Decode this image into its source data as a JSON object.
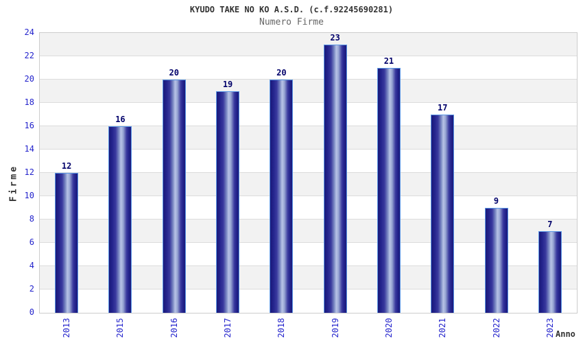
{
  "chart_data": {
    "type": "bar",
    "title": "KYUDO TAKE NO KO A.S.D. (c.f.92245690281)",
    "subtitle": "Numero Firme",
    "categories": [
      "2013",
      "2015",
      "2016",
      "2017",
      "2018",
      "2019",
      "2020",
      "2021",
      "2022",
      "2023"
    ],
    "values": [
      12,
      16,
      20,
      19,
      20,
      23,
      21,
      17,
      9,
      7
    ],
    "xlabel": "Anno",
    "ylabel": "Firme",
    "ylim": [
      0,
      24
    ],
    "ytick_step": 2,
    "grid": "horizontal",
    "bands": "alternating-2-unit",
    "legend": "none",
    "colors": {
      "tick_label": "#2323cc",
      "value_label": "#00006a",
      "title": "#333333",
      "subtitle": "#666666",
      "axis_label": "#333333",
      "band_fill": "#f2f2f2",
      "gridline": "#dcdcdc",
      "plot_border": "#cccccc",
      "bar_dark": "#1a1a7a",
      "bar_highlight": "#b7c2e6",
      "bar_border": "#5b97e6"
    }
  }
}
